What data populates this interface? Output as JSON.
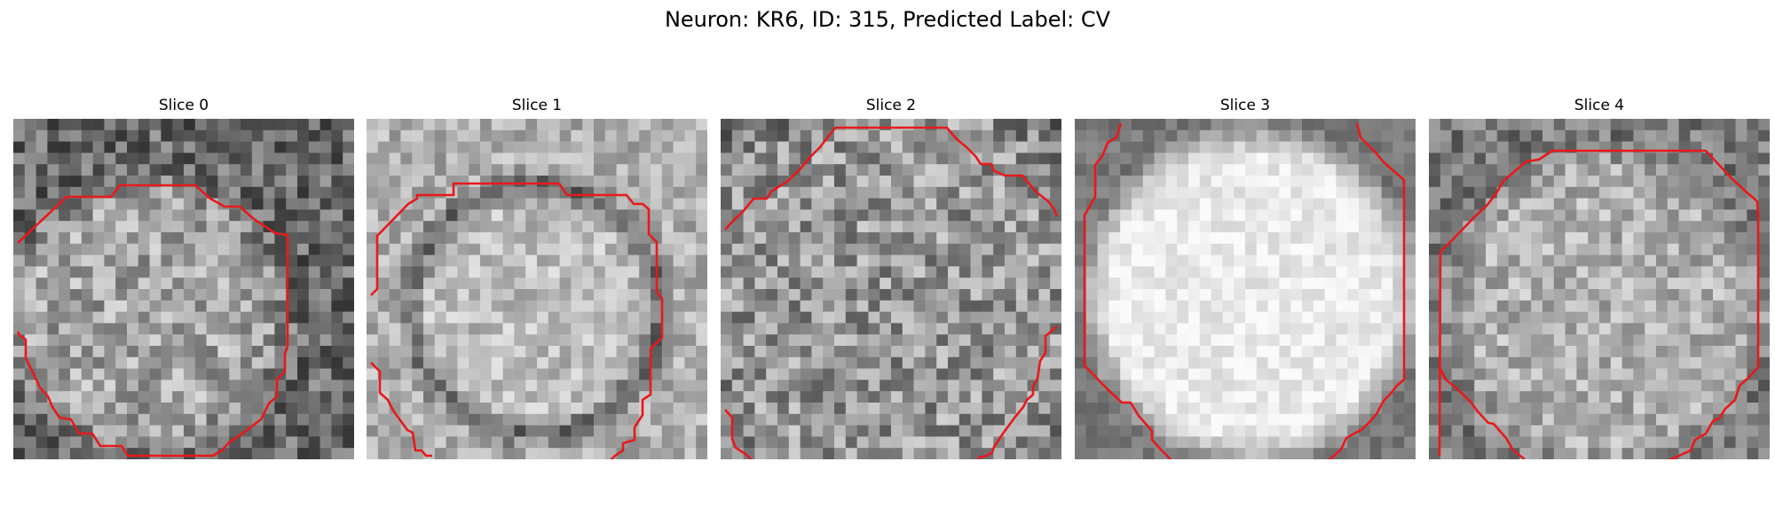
{
  "figure": {
    "title": "Neuron: KR6, ID: 315, Predicted Label: CV"
  },
  "slices": [
    {
      "title": "Slice 0"
    },
    {
      "title": "Slice 1"
    },
    {
      "title": "Slice 2"
    },
    {
      "title": "Slice 3"
    },
    {
      "title": "Slice 4"
    }
  ],
  "colors": {
    "contour": "#e8191c",
    "background": "#ffffff"
  }
}
